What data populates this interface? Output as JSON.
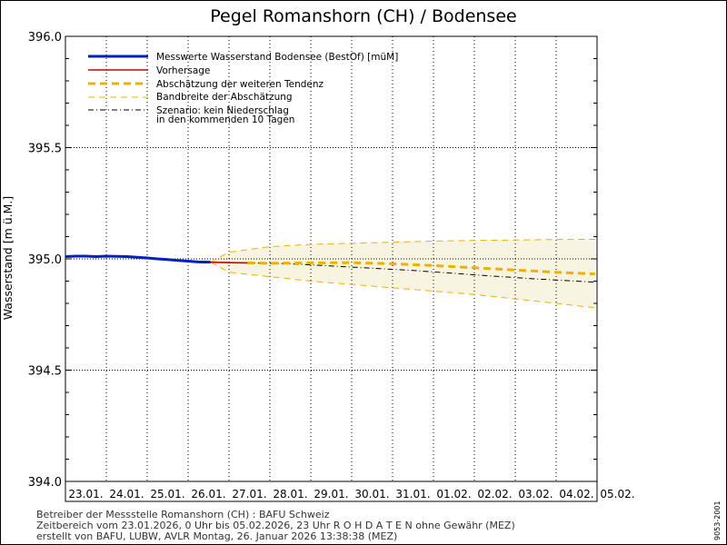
{
  "chart_data": {
    "type": "line",
    "title": "Pegel Romanshorn (CH) / Bodensee",
    "ylabel": "Wasserstand [m ü.M.]",
    "ylim": [
      394.0,
      396.0
    ],
    "yticks": [
      "396.0",
      "395.5",
      "395.0",
      "394.5",
      "394.0"
    ],
    "ytick_values": [
      396.0,
      395.5,
      395.0,
      394.5,
      394.0
    ],
    "xlim": [
      0,
      13
    ],
    "dates": [
      "23.01.",
      "24.01.",
      "25.01.",
      "26.01.",
      "27.01.",
      "28.01.",
      "29.01.",
      "30.01.",
      "31.01.",
      "01.02.",
      "02.02.",
      "03.02.",
      "04.02.",
      "05.02."
    ],
    "legend": {
      "measured": "Messwerte Wasserstand Bodensee (BestOf)  [müM]",
      "forecast": "Vorhersage",
      "estimate": "Abschätzung der weiteren Tendenz",
      "band": "Bandbreite der Abschätzung",
      "scenario_line1": "Szenario: kein Niederschlag",
      "scenario_line2": "in den kommenden 10 Tagen"
    },
    "series": [
      {
        "name": "Messwerte Wasserstand Bodensee (BestOf)",
        "color": "#0020c0",
        "x": [
          0,
          0.25,
          0.5,
          0.75,
          1.0,
          1.25,
          1.5,
          1.75,
          2.0,
          2.25,
          2.5,
          2.75,
          3.0,
          3.25,
          3.55
        ],
        "y": [
          395.01,
          395.012,
          395.012,
          395.01,
          395.012,
          395.011,
          395.01,
          395.007,
          395.004,
          395.0,
          394.997,
          394.993,
          394.99,
          394.986,
          394.985
        ]
      },
      {
        "name": "Vorhersage",
        "color": "#d00000",
        "x": [
          3.55,
          3.8,
          4.1,
          4.45
        ],
        "y": [
          394.985,
          394.984,
          394.983,
          394.982
        ]
      },
      {
        "name": "Abschätzung der weiteren Tendenz",
        "color": "#f0b000",
        "x": [
          4.45,
          5,
          6,
          7,
          8,
          9,
          10,
          11,
          12,
          12.95
        ],
        "y": [
          394.982,
          394.98,
          394.982,
          394.983,
          394.978,
          394.97,
          394.96,
          394.95,
          394.94,
          394.932
        ]
      },
      {
        "name": "Bandbreite der Abschätzung (oben)",
        "color": "#f0b000",
        "x": [
          3.55,
          4,
          5,
          6,
          7,
          8,
          9,
          10,
          11,
          12,
          12.95
        ],
        "y": [
          394.985,
          395.03,
          395.055,
          395.065,
          395.07,
          395.075,
          395.08,
          395.083,
          395.085,
          395.087,
          395.088
        ]
      },
      {
        "name": "Bandbreite der Abschätzung (unten)",
        "color": "#f0b000",
        "x": [
          3.55,
          4,
          5,
          6,
          7,
          8,
          9,
          10,
          11,
          12,
          12.95
        ],
        "y": [
          394.985,
          394.94,
          394.92,
          394.9,
          394.885,
          394.87,
          394.855,
          394.84,
          394.82,
          394.8,
          394.78
        ]
      },
      {
        "name": "Szenario: kein Niederschlag",
        "color": "#000000",
        "x": [
          3.55,
          4.5,
          5.5,
          6.5,
          7.5,
          8.5,
          9.5,
          10.5,
          11.5,
          12.5,
          12.95
        ],
        "y": [
          394.985,
          394.982,
          394.978,
          394.968,
          394.958,
          394.948,
          394.935,
          394.922,
          394.91,
          394.9,
          394.895
        ]
      }
    ]
  },
  "footer": {
    "line1": "Betreiber der Messstelle Romanshorn (CH) : BAFU Schweiz",
    "line2": "Zeitbereich vom 23.01.2026, 0 Uhr bis 05.02.2026, 23 Uhr    R O H D A T E N ohne Gewähr (MEZ)",
    "line3": "erstellt von BAFU, LUBW, AVLR Montag, 26. Januar 2026 13:38:38 (MEZ)"
  },
  "side_code": "9053-2001"
}
